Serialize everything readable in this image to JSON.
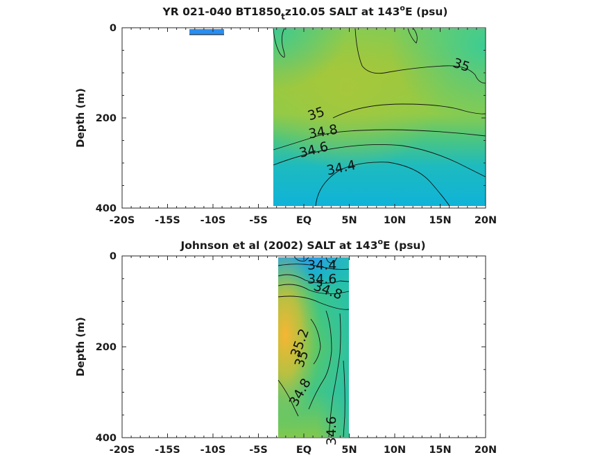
{
  "chart_data": [
    {
      "type": "heatmap",
      "title": "YR 021-040 BT1850",
      "title_sub": "t",
      "title_rest": "z10.05 SALT at 143",
      "title_sup": "o",
      "title_end": "E (psu)",
      "xlabel": "",
      "ylabel": "Depth (m)",
      "xlim": [
        -20,
        20
      ],
      "ylim": [
        400,
        0
      ],
      "x_ticks": [
        "-20S",
        "-15S",
        "-10S",
        "-5S",
        "EQ",
        "5N",
        "10N",
        "15N",
        "20N"
      ],
      "y_ticks": [
        "0",
        "200",
        "400"
      ],
      "contour_labels": [
        {
          "text": "35",
          "x": 17.2,
          "y": 92
        },
        {
          "text": "35",
          "x": 1.5,
          "y": 200
        },
        {
          "text": "34.8",
          "x": 2.2,
          "y": 240
        },
        {
          "text": "34.6",
          "x": 1.2,
          "y": 280
        },
        {
          "text": "34.4",
          "x": 4.2,
          "y": 320
        }
      ],
      "colors": {
        "low": "#12b4d8",
        "mid": "#3cc69b",
        "high": "#a5c637"
      }
    },
    {
      "type": "heatmap",
      "title": "Johnson et al (2002) SALT at 143",
      "title_sup": "o",
      "title_end": "E (psu)",
      "xlabel": "",
      "ylabel": "Depth (m)",
      "xlim": [
        -20,
        20
      ],
      "ylim": [
        400,
        0
      ],
      "x_ticks": [
        "-20S",
        "-15S",
        "-10S",
        "-5S",
        "EQ",
        "5N",
        "10N",
        "15N",
        "20N"
      ],
      "y_ticks": [
        "0",
        "200",
        "400"
      ],
      "contour_labels": [
        {
          "text": "34.4",
          "x": 2.0,
          "y": 30
        },
        {
          "text": "34.6",
          "x": 2.0,
          "y": 60
        },
        {
          "text": "34.8",
          "x": 2.5,
          "y": 85
        },
        {
          "text": "35.2",
          "x": 0.0,
          "y": 195
        },
        {
          "text": "35",
          "x": 0.2,
          "y": 230
        },
        {
          "text": "34.8",
          "x": 0.0,
          "y": 305
        },
        {
          "text": "34.6",
          "x": 3.5,
          "y": 385
        }
      ],
      "colors": {
        "low": "#2f9ee6",
        "mid": "#3cc69b",
        "high": "#f4b93a"
      }
    }
  ]
}
